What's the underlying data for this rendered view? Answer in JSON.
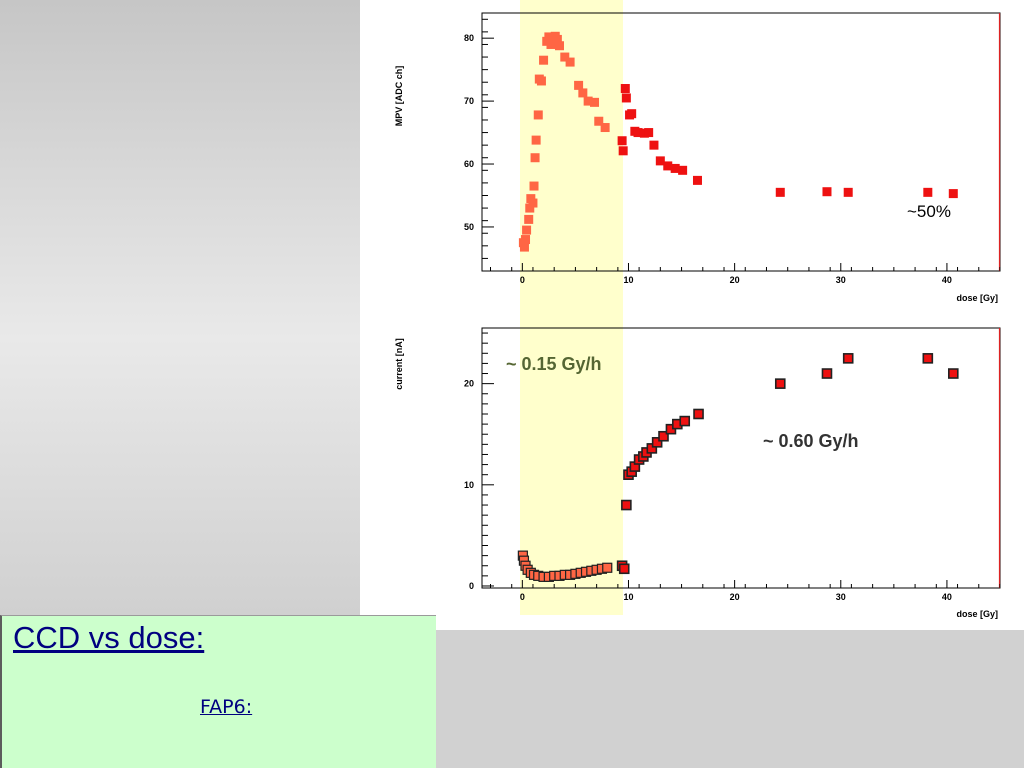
{
  "caption": {
    "title": "CCD vs dose:",
    "subtitle": "FAP6:"
  },
  "colors": {
    "highlight": "#ffffcc",
    "marker_bright": "#ee1111",
    "marker_soft": "#ff6644",
    "marker_outline": "#222222",
    "annotation_dark": "#333333",
    "annotation_olive": "#556633"
  },
  "chart_data": [
    {
      "type": "scatter",
      "title": "",
      "xlabel": "dose [Gy]",
      "ylabel": "MPV [ADC ch]",
      "xlim": [
        -3.8,
        45
      ],
      "ylim": [
        43,
        84
      ],
      "xticks": [
        0,
        10,
        20,
        30,
        40
      ],
      "yticks": [
        50,
        60,
        70,
        80
      ],
      "grid": false,
      "shaded_region": [
        -0.3,
        9.3
      ],
      "annotations": [
        "~50%"
      ],
      "series": [
        {
          "x": [
            0.1,
            0.2,
            0.3,
            0.4,
            0.6,
            0.7,
            0.8,
            1.0,
            1.1,
            1.2,
            1.3,
            1.5,
            1.6,
            1.8,
            2.0,
            2.3,
            2.5,
            2.7,
            2.9,
            3.1,
            3.3,
            3.5,
            4.0,
            4.5,
            5.3,
            5.7,
            6.2,
            6.8,
            7.2,
            7.8
          ],
          "y": [
            47.5,
            46.8,
            48.0,
            49.5,
            51.2,
            53.0,
            54.5,
            53.8,
            56.5,
            61.0,
            63.8,
            67.8,
            73.5,
            73.2,
            76.5,
            79.5,
            80.2,
            79.0,
            80.0,
            80.3,
            79.8,
            78.8,
            77.0,
            76.2,
            72.5,
            71.3,
            70.0,
            69.8,
            66.8,
            65.8
          ]
        },
        {
          "x": [
            9.4,
            9.5,
            9.7,
            9.8,
            10.1,
            10.3,
            10.6,
            10.9,
            11.5,
            11.9,
            12.4,
            13.0,
            13.7,
            14.4,
            15.1,
            16.5,
            24.3,
            28.7,
            30.7,
            38.2,
            40.6
          ],
          "y": [
            63.7,
            62.1,
            72.0,
            70.5,
            67.8,
            68.0,
            65.2,
            65.0,
            64.9,
            65.0,
            63.0,
            60.5,
            59.7,
            59.3,
            59.0,
            57.4,
            55.5,
            55.6,
            55.5,
            55.5,
            55.3
          ]
        }
      ]
    },
    {
      "type": "scatter",
      "title": "",
      "xlabel": "dose [Gy]",
      "ylabel": "current [nA]",
      "xlim": [
        -3.8,
        45
      ],
      "ylim": [
        -0.2,
        25.5
      ],
      "xticks": [
        0,
        10,
        20,
        30,
        40
      ],
      "yticks": [
        0,
        10,
        20
      ],
      "grid": false,
      "shaded_region": [
        -0.3,
        9.3
      ],
      "annotations": [
        "~ 0.15 Gy/h",
        "~ 0.60 Gy/h"
      ],
      "series": [
        {
          "x": [
            0.05,
            0.15,
            0.3,
            0.5,
            0.8,
            1.1,
            1.5,
            2.0,
            2.5,
            3.0,
            3.5,
            4.0,
            4.5,
            5.0,
            5.5,
            6.0,
            6.5,
            7.0,
            7.5,
            8.0
          ],
          "y": [
            3.0,
            2.5,
            2.0,
            1.6,
            1.3,
            1.1,
            1.0,
            0.9,
            0.9,
            1.0,
            1.0,
            1.1,
            1.1,
            1.2,
            1.3,
            1.4,
            1.5,
            1.6,
            1.7,
            1.8
          ]
        },
        {
          "x": [
            9.4,
            9.6,
            9.8,
            10.0,
            10.3,
            10.6,
            11.0,
            11.4,
            11.7,
            12.2,
            12.7,
            13.3,
            14.0,
            14.6,
            15.3,
            16.6,
            24.3,
            28.7,
            30.7,
            38.2,
            40.6
          ],
          "y": [
            2.0,
            1.7,
            8.0,
            11.0,
            11.3,
            11.8,
            12.5,
            12.8,
            13.2,
            13.6,
            14.2,
            14.8,
            15.5,
            16.0,
            16.3,
            17.0,
            20.0,
            21.0,
            22.5,
            22.5,
            21.0
          ]
        }
      ]
    }
  ]
}
